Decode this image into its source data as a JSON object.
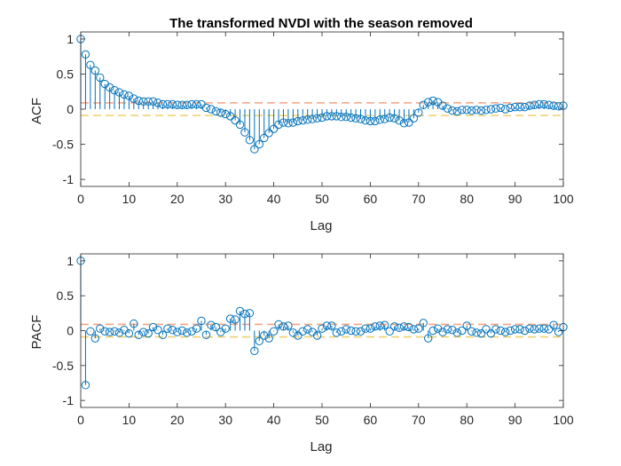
{
  "colors": {
    "stem": "#0072BD",
    "upper_bound": "#F4A582",
    "lower_bound": "#EDD070",
    "axes": "#262626"
  },
  "chart_data": [
    {
      "type": "stem",
      "title": "The transformed NVDI with the season removed",
      "xlabel": "Lag",
      "ylabel": "ACF",
      "xlim": [
        0,
        100
      ],
      "ylim": [
        -1.1,
        1.1
      ],
      "xticks": [
        0,
        10,
        20,
        30,
        40,
        50,
        60,
        70,
        80,
        90,
        100
      ],
      "yticks": [
        -1,
        -0.5,
        0,
        0.5,
        1
      ],
      "confidence_bounds": [
        0.09,
        -0.09
      ],
      "x_start": 0,
      "values": [
        1.0,
        0.78,
        0.63,
        0.55,
        0.45,
        0.36,
        0.31,
        0.27,
        0.24,
        0.21,
        0.19,
        0.15,
        0.12,
        0.11,
        0.11,
        0.11,
        0.09,
        0.07,
        0.07,
        0.07,
        0.06,
        0.06,
        0.06,
        0.07,
        0.07,
        0.07,
        0.02,
        0.0,
        -0.03,
        -0.05,
        -0.07,
        -0.1,
        -0.16,
        -0.22,
        -0.33,
        -0.44,
        -0.57,
        -0.5,
        -0.41,
        -0.34,
        -0.28,
        -0.22,
        -0.19,
        -0.2,
        -0.19,
        -0.17,
        -0.16,
        -0.15,
        -0.14,
        -0.13,
        -0.12,
        -0.1,
        -0.1,
        -0.1,
        -0.11,
        -0.11,
        -0.12,
        -0.13,
        -0.14,
        -0.16,
        -0.17,
        -0.17,
        -0.15,
        -0.14,
        -0.12,
        -0.13,
        -0.16,
        -0.2,
        -0.19,
        -0.13,
        -0.05,
        0.06,
        0.1,
        0.12,
        0.1,
        0.05,
        0.01,
        -0.02,
        -0.03,
        -0.01,
        -0.01,
        -0.02,
        -0.01,
        -0.02,
        -0.01,
        0.0,
        0.01,
        0.02,
        0.0,
        0.02,
        0.03,
        0.03,
        0.03,
        0.05,
        0.06,
        0.07,
        0.07,
        0.06,
        0.05,
        0.04,
        0.05
      ]
    },
    {
      "type": "stem",
      "title": "",
      "xlabel": "Lag",
      "ylabel": "PACF",
      "xlim": [
        0,
        100
      ],
      "ylim": [
        -1.1,
        1.1
      ],
      "xticks": [
        0,
        10,
        20,
        30,
        40,
        50,
        60,
        70,
        80,
        90,
        100
      ],
      "yticks": [
        -1,
        -0.5,
        0,
        0.5,
        1
      ],
      "confidence_bounds": [
        0.09,
        -0.09
      ],
      "x_start": 0,
      "values": [
        1.0,
        -0.78,
        -0.01,
        -0.11,
        0.03,
        -0.01,
        -0.02,
        -0.01,
        -0.03,
        0.01,
        -0.04,
        0.1,
        -0.06,
        -0.02,
        -0.04,
        0.05,
        0.01,
        -0.06,
        0.03,
        0.01,
        -0.02,
        0.0,
        -0.03,
        -0.01,
        0.03,
        0.14,
        -0.06,
        0.08,
        0.05,
        -0.02,
        0.03,
        0.17,
        0.16,
        0.28,
        0.24,
        0.25,
        -0.29,
        -0.15,
        -0.07,
        -0.11,
        -0.01,
        0.09,
        0.06,
        0.07,
        -0.03,
        -0.07,
        -0.01,
        0.02,
        -0.02,
        -0.07,
        0.03,
        0.07,
        0.07,
        -0.03,
        -0.01,
        0.02,
        0.0,
        -0.01,
        -0.01,
        0.03,
        0.03,
        0.06,
        0.07,
        0.08,
        -0.01,
        0.06,
        0.04,
        0.06,
        0.05,
        0.02,
        0.03,
        0.11,
        -0.11,
        0.0,
        0.03,
        -0.02,
        0.02,
        0.01,
        -0.03,
        0.0,
        0.07,
        -0.01,
        -0.03,
        -0.04,
        0.02,
        -0.04,
        0.02,
        0.0,
        -0.02,
        0.0,
        0.02,
        0.02,
        0.0,
        0.03,
        0.02,
        0.03,
        0.03,
        0.02,
        0.08,
        -0.02,
        0.05
      ]
    }
  ]
}
